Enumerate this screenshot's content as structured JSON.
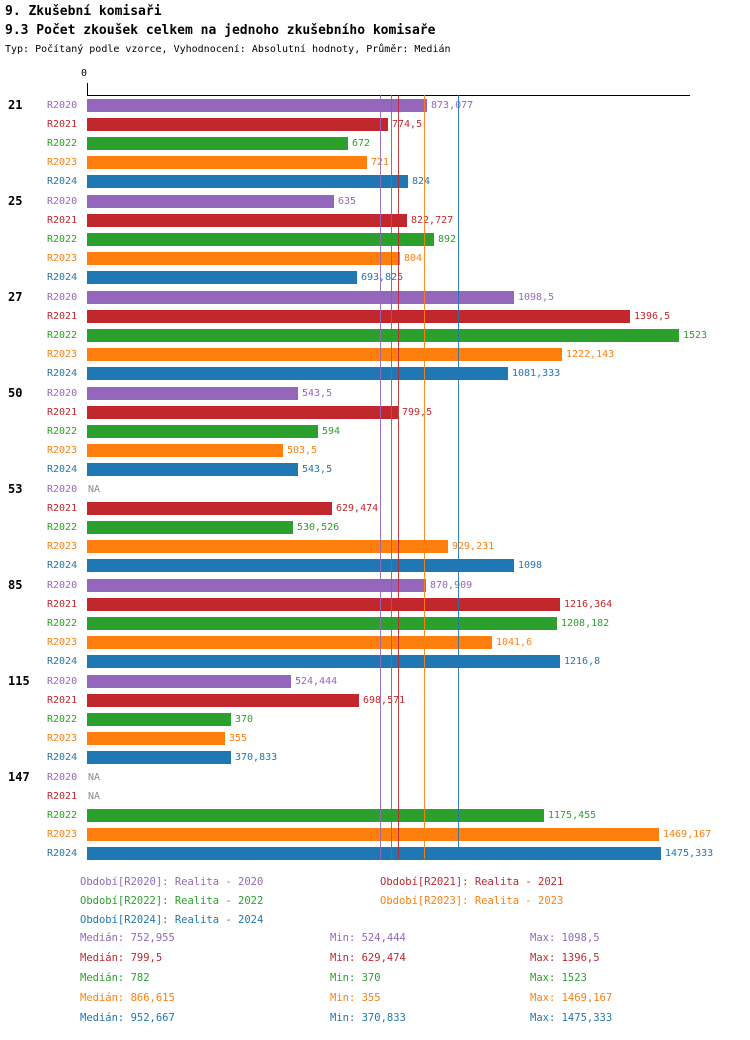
{
  "page": {
    "title": "9. Zkušební komisaři",
    "subtitle": "9.3 Počet zkoušek celkem na jednoho zkušebního komisaře",
    "meta": "Typ: Počítaný podle vzorce, Vyhodnocení: Absolutní hodnoty, Průměr: Medián"
  },
  "chart_data": {
    "type": "bar",
    "orientation": "horizontal",
    "axis_zero_label": "0",
    "xlim": [
      0,
      1540
    ],
    "grid": false,
    "legend_position": "bottom",
    "series_keys": [
      "R2020",
      "R2021",
      "R2022",
      "R2023",
      "R2024"
    ],
    "series_colors": {
      "R2020": "#9467bd",
      "R2021": "#c2272d",
      "R2022": "#2ca02c",
      "R2023": "#ff7f0e",
      "R2024": "#1f77b4"
    },
    "na_text": "NA",
    "groups": [
      {
        "label": "21",
        "bars": [
          {
            "series": "R2020",
            "value": 873.077,
            "text": "873,077"
          },
          {
            "series": "R2021",
            "value": 774.5,
            "text": "774,5"
          },
          {
            "series": "R2022",
            "value": 672,
            "text": "672"
          },
          {
            "series": "R2023",
            "value": 721,
            "text": "721"
          },
          {
            "series": "R2024",
            "value": 824,
            "text": "824"
          }
        ]
      },
      {
        "label": "25",
        "bars": [
          {
            "series": "R2020",
            "value": 635,
            "text": "635"
          },
          {
            "series": "R2021",
            "value": 822.727,
            "text": "822,727"
          },
          {
            "series": "R2022",
            "value": 892,
            "text": "892"
          },
          {
            "series": "R2023",
            "value": 804,
            "text": "804"
          },
          {
            "series": "R2024",
            "value": 693.825,
            "text": "693,825"
          }
        ]
      },
      {
        "label": "27",
        "bars": [
          {
            "series": "R2020",
            "value": 1098.5,
            "text": "1098,5"
          },
          {
            "series": "R2021",
            "value": 1396.5,
            "text": "1396,5"
          },
          {
            "series": "R2022",
            "value": 1523,
            "text": "1523"
          },
          {
            "series": "R2023",
            "value": 1222.143,
            "text": "1222,143"
          },
          {
            "series": "R2024",
            "value": 1081.333,
            "text": "1081,333"
          }
        ]
      },
      {
        "label": "50",
        "bars": [
          {
            "series": "R2020",
            "value": 543.5,
            "text": "543,5"
          },
          {
            "series": "R2021",
            "value": 799.5,
            "text": "799,5"
          },
          {
            "series": "R2022",
            "value": 594,
            "text": "594"
          },
          {
            "series": "R2023",
            "value": 503.5,
            "text": "503,5"
          },
          {
            "series": "R2024",
            "value": 543.5,
            "text": "543,5"
          }
        ]
      },
      {
        "label": "53",
        "bars": [
          {
            "series": "R2020",
            "value": null,
            "text": "NA"
          },
          {
            "series": "R2021",
            "value": 629.474,
            "text": "629,474"
          },
          {
            "series": "R2022",
            "value": 530.526,
            "text": "530,526"
          },
          {
            "series": "R2023",
            "value": 929.231,
            "text": "929,231"
          },
          {
            "series": "R2024",
            "value": 1098,
            "text": "1098"
          }
        ]
      },
      {
        "label": "85",
        "bars": [
          {
            "series": "R2020",
            "value": 870.909,
            "text": "870,909"
          },
          {
            "series": "R2021",
            "value": 1216.364,
            "text": "1216,364"
          },
          {
            "series": "R2022",
            "value": 1208.182,
            "text": "1208,182"
          },
          {
            "series": "R2023",
            "value": 1041.6,
            "text": "1041,6"
          },
          {
            "series": "R2024",
            "value": 1216.8,
            "text": "1216,8"
          }
        ]
      },
      {
        "label": "115",
        "bars": [
          {
            "series": "R2020",
            "value": 524.444,
            "text": "524,444"
          },
          {
            "series": "R2021",
            "value": 698.571,
            "text": "698,571"
          },
          {
            "series": "R2022",
            "value": 370,
            "text": "370"
          },
          {
            "series": "R2023",
            "value": 355,
            "text": "355"
          },
          {
            "series": "R2024",
            "value": 370.833,
            "text": "370,833"
          }
        ]
      },
      {
        "label": "147",
        "bars": [
          {
            "series": "R2020",
            "value": null,
            "text": "NA"
          },
          {
            "series": "R2021",
            "value": null,
            "text": "NA"
          },
          {
            "series": "R2022",
            "value": 1175.455,
            "text": "1175,455"
          },
          {
            "series": "R2023",
            "value": 1469.167,
            "text": "1469,167"
          },
          {
            "series": "R2024",
            "value": 1475.333,
            "text": "1475,333"
          }
        ]
      }
    ],
    "medians": [
      {
        "series": "R2020",
        "value": 752.955
      },
      {
        "series": "R2021",
        "value": 799.5
      },
      {
        "series": "R2022",
        "value": 782
      },
      {
        "series": "R2023",
        "value": 866.615
      },
      {
        "series": "R2024",
        "value": 952.667
      }
    ],
    "legend": [
      {
        "series": "R2020",
        "label": "Období[R2020]: Realita - 2020",
        "row": 0,
        "col": 0
      },
      {
        "series": "R2021",
        "label": "Období[R2021]: Realita - 2021",
        "row": 0,
        "col": 1
      },
      {
        "series": "R2022",
        "label": "Období[R2022]: Realita - 2022",
        "row": 1,
        "col": 0
      },
      {
        "series": "R2023",
        "label": "Období[R2023]: Realita - 2023",
        "row": 1,
        "col": 1
      },
      {
        "series": "R2024",
        "label": "Období[R2024]: Realita - 2024",
        "row": 2,
        "col": 0
      }
    ],
    "stats": [
      {
        "series": "R2020",
        "median": "Medián: 752,955",
        "min": "Min: 524,444",
        "max": "Max: 1098,5"
      },
      {
        "series": "R2021",
        "median": "Medián: 799,5",
        "min": "Min: 629,474",
        "max": "Max: 1396,5"
      },
      {
        "series": "R2022",
        "median": "Medián: 782",
        "min": "Min: 370",
        "max": "Max: 1523"
      },
      {
        "series": "R2023",
        "median": "Medián: 866,615",
        "min": "Min: 355",
        "max": "Max: 1469,167"
      },
      {
        "series": "R2024",
        "median": "Medián: 952,667",
        "min": "Min: 370,833",
        "max": "Max: 1475,333"
      }
    ]
  }
}
